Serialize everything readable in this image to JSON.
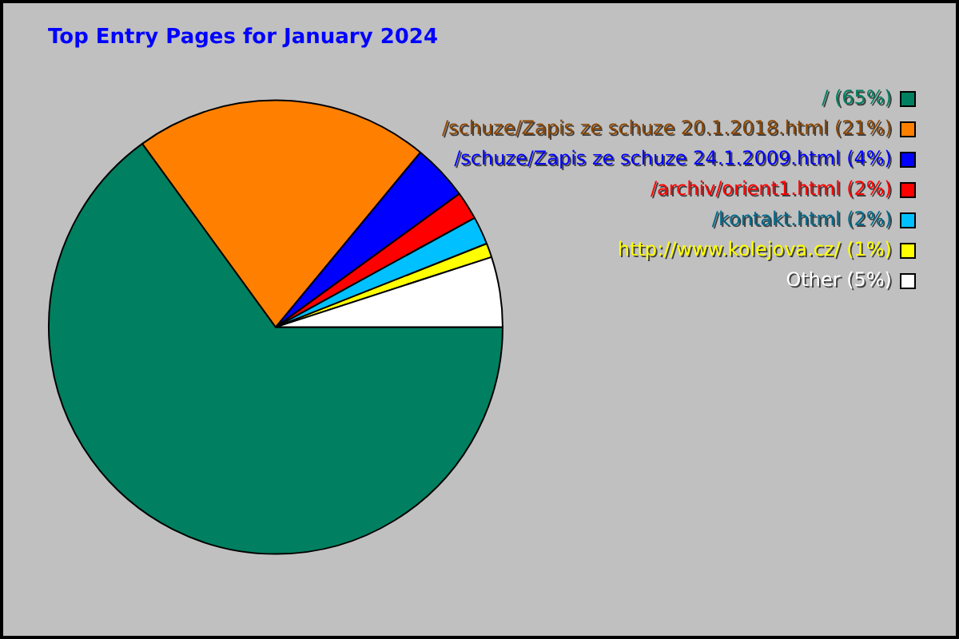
{
  "chart_data": {
    "type": "pie",
    "title": "Top Entry Pages for January 2024",
    "categories": [
      "/ (65%)",
      "/schuze/Zapis ze schuze 20.1.2018.html (21%)",
      "/schuze/Zapis ze schuze 24.1.2009.html (4%)",
      "/archiv/orient1.html (2%)",
      "/kontakt.html (2%)",
      "http://www.kolejova.cz/ (1%)",
      "Other (5%)"
    ],
    "values": [
      65,
      21,
      4,
      2,
      2,
      1,
      5
    ],
    "colors": [
      "#008060",
      "#ff8000",
      "#0000ff",
      "#ff0000",
      "#00c0ff",
      "#ffff00",
      "#ffffff"
    ],
    "legend": "top right"
  }
}
